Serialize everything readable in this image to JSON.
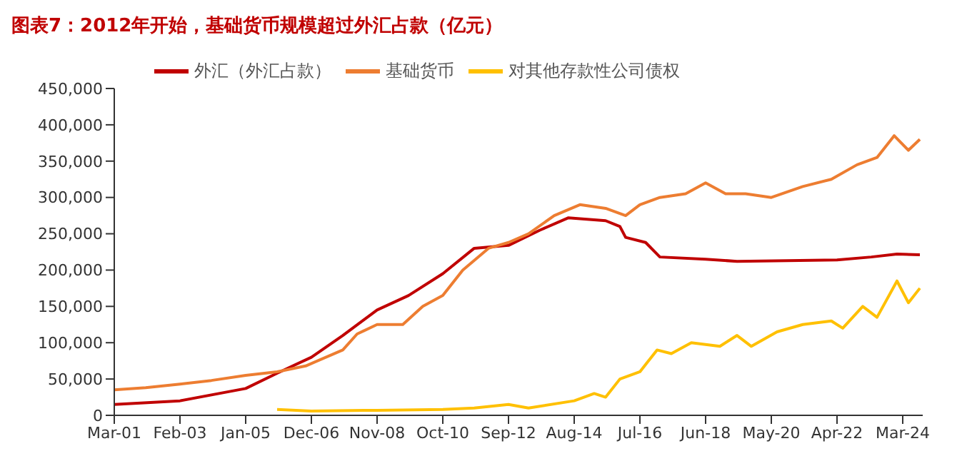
{
  "chart_data": {
    "type": "line",
    "title": "图表7：2012年开始，基础货币规模超过外汇占款（亿元）",
    "xlim": [
      "2001-03",
      "2024-10"
    ],
    "xticks": [
      {
        "value": "2001-03",
        "label": "Mar-01"
      },
      {
        "value": "2003-02",
        "label": "Feb-03"
      },
      {
        "value": "2005-01",
        "label": "Jan-05"
      },
      {
        "value": "2006-12",
        "label": "Dec-06"
      },
      {
        "value": "2008-11",
        "label": "Nov-08"
      },
      {
        "value": "2010-10",
        "label": "Oct-10"
      },
      {
        "value": "2012-09",
        "label": "Sep-12"
      },
      {
        "value": "2014-08",
        "label": "Aug-14"
      },
      {
        "value": "2016-07",
        "label": "Jul-16"
      },
      {
        "value": "2018-06",
        "label": "Jun-18"
      },
      {
        "value": "2020-05",
        "label": "May-20"
      },
      {
        "value": "2022-04",
        "label": "Apr-22"
      },
      {
        "value": "2024-03",
        "label": "Mar-24"
      }
    ],
    "ylim": [
      0,
      450000
    ],
    "yticks": [
      0,
      {
        "value": 50000,
        "label": "50,000"
      },
      {
        "value": 100000,
        "label": "100,000"
      },
      {
        "value": 150000,
        "label": "150,000"
      },
      {
        "value": 200000,
        "label": "200,000"
      },
      {
        "value": 250000,
        "label": "250,000"
      },
      {
        "value": 300000,
        "label": "300,000"
      },
      {
        "value": 350000,
        "label": "350,000"
      },
      {
        "value": 400000,
        "label": "400,000"
      },
      {
        "value": 450000,
        "label": "450,000"
      }
    ],
    "legend": "top left",
    "line_style": "solid",
    "series": [
      {
        "name": "外汇（外汇占款）",
        "color": "#c00000",
        "x": [
          "2001-03",
          "2003-02",
          "2005-01",
          "2005-12",
          "2006-12",
          "2007-11",
          "2008-11",
          "2009-10",
          "2010-10",
          "2011-09",
          "2012-09",
          "2013-08",
          "2014-06",
          "2015-07",
          "2015-12",
          "2016-02",
          "2016-09",
          "2017-02",
          "2018-06",
          "2019-05",
          "2022-04",
          "2023-04",
          "2024-01",
          "2024-09"
        ],
        "values": [
          15000,
          20000,
          37000,
          58000,
          80000,
          110000,
          145000,
          165000,
          195000,
          230000,
          234000,
          255000,
          272000,
          268000,
          260000,
          245000,
          238000,
          218000,
          215000,
          212000,
          214000,
          218000,
          222000,
          221000
        ]
      },
      {
        "name": "基础货币",
        "color": "#ed7d31",
        "x": [
          "2001-03",
          "2002-02",
          "2003-02",
          "2004-01",
          "2005-01",
          "2005-12",
          "2006-10",
          "2007-11",
          "2008-04",
          "2008-11",
          "2009-08",
          "2010-03",
          "2010-10",
          "2011-05",
          "2012-02",
          "2012-09",
          "2013-04",
          "2014-01",
          "2014-10",
          "2015-07",
          "2016-02",
          "2016-07",
          "2017-02",
          "2017-11",
          "2018-06",
          "2019-01",
          "2019-08",
          "2020-05",
          "2021-04",
          "2022-02",
          "2022-11",
          "2023-06",
          "2023-12",
          "2024-05",
          "2024-09"
        ],
        "values": [
          35000,
          38000,
          43000,
          48000,
          55000,
          60000,
          68000,
          90000,
          112000,
          125000,
          125000,
          150000,
          165000,
          200000,
          230000,
          238000,
          250000,
          275000,
          290000,
          285000,
          275000,
          290000,
          300000,
          305000,
          320000,
          305000,
          305000,
          300000,
          315000,
          325000,
          345000,
          355000,
          385000,
          365000,
          380000
        ]
      },
      {
        "name": "对其他存款性公司债权",
        "color": "#ffc000",
        "x": [
          "2005-12",
          "2006-12",
          "2008-11",
          "2010-10",
          "2011-09",
          "2012-09",
          "2013-04",
          "2014-08",
          "2015-03",
          "2015-07",
          "2015-12",
          "2016-07",
          "2017-01",
          "2017-06",
          "2018-01",
          "2018-11",
          "2019-05",
          "2019-10",
          "2020-07",
          "2021-04",
          "2022-02",
          "2022-06",
          "2023-01",
          "2023-06",
          "2024-01",
          "2024-05",
          "2024-09"
        ],
        "values": [
          8000,
          6000,
          7000,
          8000,
          10000,
          15000,
          10000,
          20000,
          30000,
          25000,
          50000,
          60000,
          90000,
          85000,
          100000,
          95000,
          110000,
          95000,
          115000,
          125000,
          130000,
          120000,
          150000,
          135000,
          185000,
          155000,
          175000
        ]
      }
    ]
  }
}
